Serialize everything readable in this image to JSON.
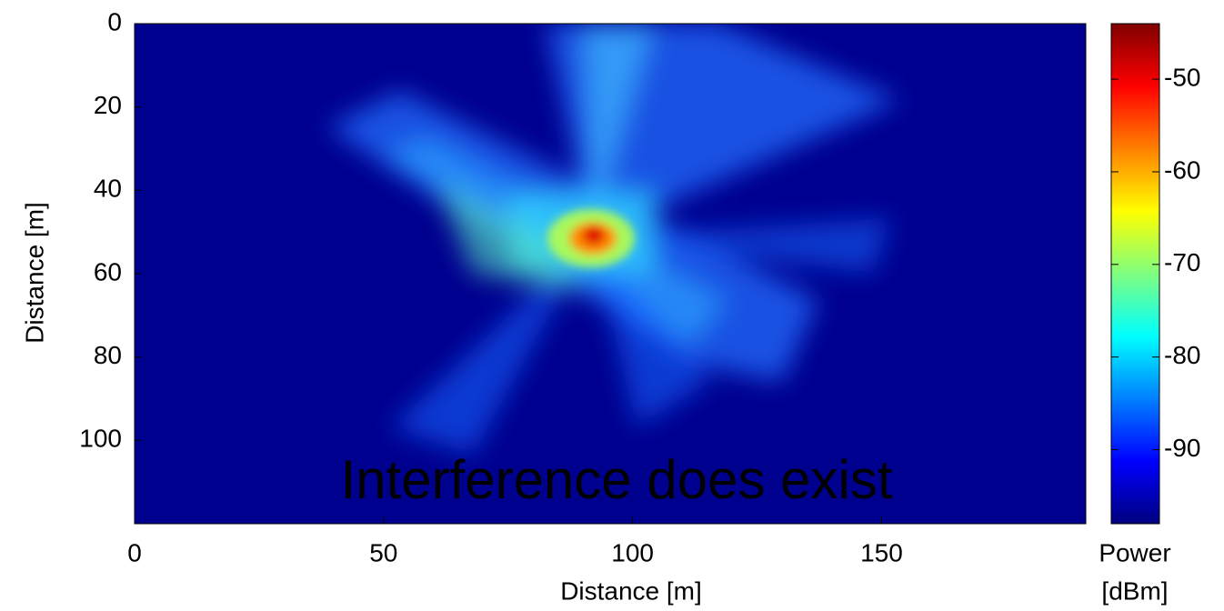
{
  "chart_data": {
    "type": "heatmap",
    "xlabel": "Distance [m]",
    "ylabel": "Distance [m]",
    "xlim": [
      0,
      191
    ],
    "xticks": [
      0,
      50,
      100,
      150
    ],
    "ylim": [
      0,
      120
    ],
    "yticks": [
      0,
      20,
      40,
      60,
      80,
      100
    ],
    "y_inverted": true,
    "colormap": "jet",
    "clim": [
      -98,
      -44
    ],
    "colorbar_ticks": [
      -50,
      -60,
      -70,
      -80,
      -90
    ],
    "colorbar_label": [
      "Power",
      "[dBm]"
    ],
    "annotation": "Interference does exist",
    "annotation_color": "#ff2a00"
  }
}
